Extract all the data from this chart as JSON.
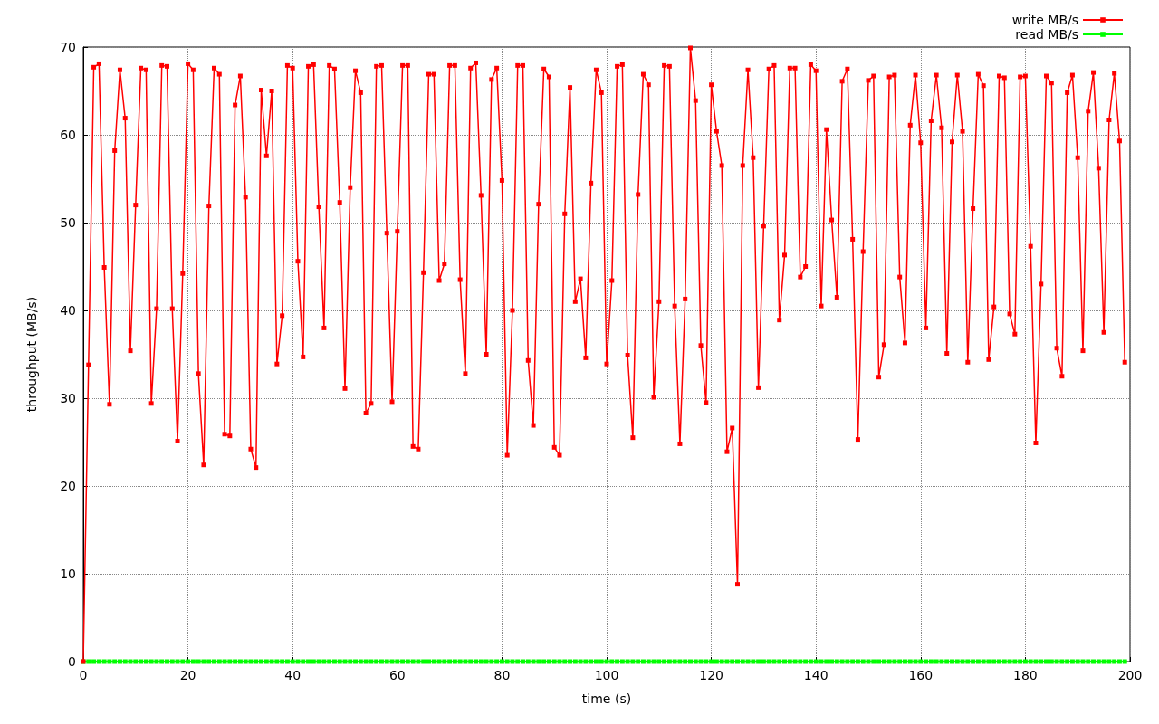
{
  "chart_data": {
    "type": "line",
    "xlabel": "time (s)",
    "ylabel": "throughput (MB/s)",
    "x": [
      0,
      1,
      2,
      3,
      4,
      5,
      6,
      7,
      8,
      9,
      10,
      11,
      12,
      13,
      14,
      15,
      16,
      17,
      18,
      19,
      20,
      21,
      22,
      23,
      24,
      25,
      26,
      27,
      28,
      29,
      30,
      31,
      32,
      33,
      34,
      35,
      36,
      37,
      38,
      39,
      40,
      41,
      42,
      43,
      44,
      45,
      46,
      47,
      48,
      49,
      50,
      51,
      52,
      53,
      54,
      55,
      56,
      57,
      58,
      59,
      60,
      61,
      62,
      63,
      64,
      65,
      66,
      67,
      68,
      69,
      70,
      71,
      72,
      73,
      74,
      75,
      76,
      77,
      78,
      79,
      80,
      81,
      82,
      83,
      84,
      85,
      86,
      87,
      88,
      89,
      90,
      91,
      92,
      93,
      94,
      95,
      96,
      97,
      98,
      99,
      100,
      101,
      102,
      103,
      104,
      105,
      106,
      107,
      108,
      109,
      110,
      111,
      112,
      113,
      114,
      115,
      116,
      117,
      118,
      119,
      120,
      121,
      122,
      123,
      124,
      125,
      126,
      127,
      128,
      129,
      130,
      131,
      132,
      133,
      134,
      135,
      136,
      137,
      138,
      139,
      140,
      141,
      142,
      143,
      144,
      145,
      146,
      147,
      148,
      149,
      150,
      151,
      152,
      153,
      154,
      155,
      156,
      157,
      158,
      159,
      160,
      161,
      162,
      163,
      164,
      165,
      166,
      167,
      168,
      169,
      170,
      171,
      172,
      173,
      174,
      175,
      176,
      177,
      178,
      179,
      180,
      181,
      182,
      183,
      184,
      185,
      186,
      187,
      188,
      189,
      190,
      191,
      192,
      193,
      194,
      195,
      196,
      197,
      198,
      199
    ],
    "series": [
      {
        "name": "write MB/s",
        "color": "#ff0000",
        "values": [
          0,
          33.8,
          67.7,
          68.1,
          44.9,
          29.3,
          58.2,
          67.4,
          61.9,
          35.4,
          52.0,
          67.6,
          67.4,
          29.4,
          40.2,
          67.9,
          67.8,
          40.2,
          25.1,
          44.2,
          68.1,
          67.4,
          32.8,
          22.4,
          51.9,
          67.6,
          66.9,
          25.9,
          25.7,
          63.4,
          66.7,
          52.9,
          24.2,
          22.1,
          65.1,
          57.6,
          65.0,
          33.9,
          39.4,
          67.9,
          67.6,
          45.6,
          34.7,
          67.8,
          68.0,
          51.8,
          38.0,
          67.9,
          67.5,
          52.3,
          31.1,
          54.0,
          67.3,
          64.8,
          28.3,
          29.4,
          67.8,
          67.9,
          48.8,
          29.6,
          49.0,
          67.9,
          67.9,
          24.5,
          24.2,
          44.3,
          66.9,
          66.9,
          43.4,
          45.3,
          67.9,
          67.9,
          43.5,
          32.8,
          67.6,
          68.2,
          53.1,
          35.0,
          66.3,
          67.6,
          54.8,
          23.5,
          40.0,
          67.9,
          67.9,
          34.3,
          26.9,
          52.1,
          67.5,
          66.6,
          24.4,
          23.5,
          51.0,
          65.4,
          41.0,
          43.6,
          34.6,
          54.5,
          67.4,
          64.8,
          33.9,
          43.4,
          67.8,
          68.0,
          34.9,
          25.5,
          53.2,
          66.9,
          65.7,
          30.1,
          41.0,
          67.9,
          67.8,
          40.5,
          24.8,
          41.3,
          69.9,
          63.9,
          36.0,
          29.5,
          65.7,
          60.4,
          56.5,
          23.9,
          26.6,
          8.8,
          56.5,
          67.4,
          57.4,
          31.2,
          49.6,
          67.5,
          67.9,
          38.9,
          46.3,
          67.6,
          67.6,
          43.8,
          45.0,
          68.0,
          67.3,
          40.5,
          60.6,
          50.3,
          41.5,
          66.1,
          67.5,
          48.1,
          25.3,
          46.7,
          66.2,
          66.7,
          32.4,
          36.1,
          66.6,
          66.8,
          43.8,
          36.3,
          61.1,
          66.8,
          59.1,
          38.0,
          61.6,
          66.8,
          60.8,
          35.1,
          59.2,
          66.8,
          60.4,
          34.1,
          51.6,
          66.9,
          65.6,
          34.4,
          40.4,
          66.7,
          66.5,
          39.6,
          37.3,
          66.6,
          66.7,
          47.3,
          24.9,
          43.0,
          66.7,
          65.9,
          35.7,
          32.5,
          64.8,
          66.8,
          57.4,
          35.4,
          62.7,
          67.1,
          56.2,
          37.5,
          61.7,
          67.0,
          59.3,
          34.1
        ]
      },
      {
        "name": "read MB/s",
        "color": "#00ff00",
        "values": [
          0,
          0,
          0,
          0,
          0,
          0,
          0,
          0,
          0,
          0,
          0,
          0,
          0,
          0,
          0,
          0,
          0,
          0,
          0,
          0,
          0,
          0,
          0,
          0,
          0,
          0,
          0,
          0,
          0,
          0,
          0,
          0,
          0,
          0,
          0,
          0,
          0,
          0,
          0,
          0,
          0,
          0,
          0,
          0,
          0,
          0,
          0,
          0,
          0,
          0,
          0,
          0,
          0,
          0,
          0,
          0,
          0,
          0,
          0,
          0,
          0,
          0,
          0,
          0,
          0,
          0,
          0,
          0,
          0,
          0,
          0,
          0,
          0,
          0,
          0,
          0,
          0,
          0,
          0,
          0,
          0,
          0,
          0,
          0,
          0,
          0,
          0,
          0,
          0,
          0,
          0,
          0,
          0,
          0,
          0,
          0,
          0,
          0,
          0,
          0,
          0,
          0,
          0,
          0,
          0,
          0,
          0,
          0,
          0,
          0,
          0,
          0,
          0,
          0,
          0,
          0,
          0,
          0,
          0,
          0,
          0,
          0,
          0,
          0,
          0,
          0,
          0,
          0,
          0,
          0,
          0,
          0,
          0,
          0,
          0,
          0,
          0,
          0,
          0,
          0,
          0,
          0,
          0,
          0,
          0,
          0,
          0,
          0,
          0,
          0,
          0,
          0,
          0,
          0,
          0,
          0,
          0,
          0,
          0,
          0,
          0,
          0,
          0,
          0,
          0,
          0,
          0,
          0,
          0,
          0,
          0,
          0,
          0,
          0,
          0,
          0,
          0,
          0,
          0,
          0,
          0,
          0,
          0,
          0,
          0,
          0,
          0,
          0,
          0,
          0,
          0,
          0,
          0,
          0,
          0,
          0,
          0,
          0,
          0,
          0
        ]
      }
    ],
    "xlim": [
      0,
      200
    ],
    "xticks": [
      0,
      20,
      40,
      60,
      80,
      100,
      120,
      140,
      160,
      180,
      200
    ],
    "ylim": [
      0,
      70
    ],
    "yticks": [
      0,
      10,
      20,
      30,
      40,
      50,
      60,
      70
    ],
    "grid": true,
    "legend": "top right",
    "marker": "square",
    "line_style": "solid"
  }
}
